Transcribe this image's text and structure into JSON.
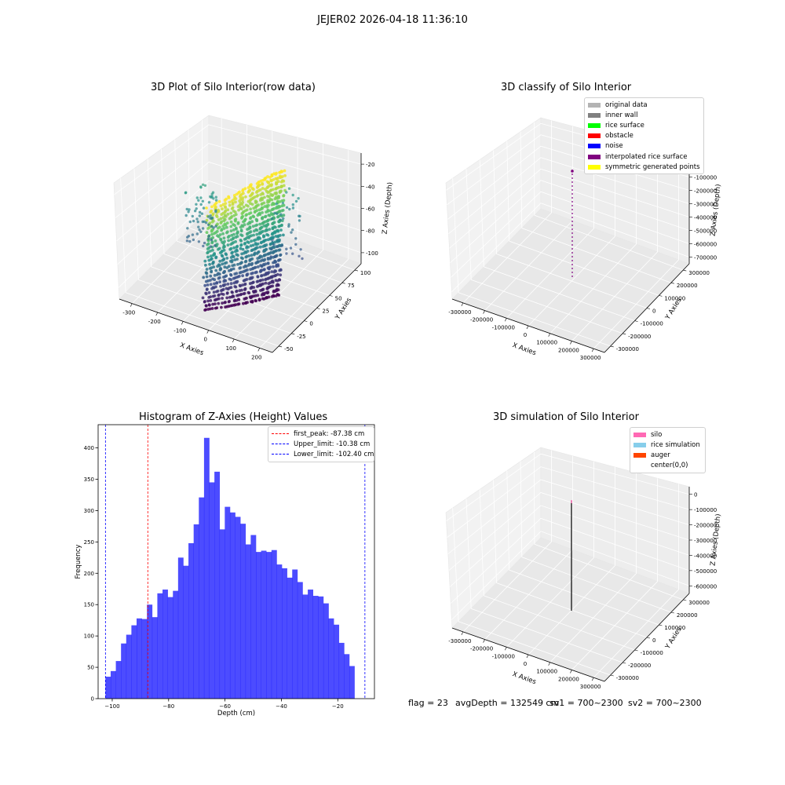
{
  "figure": {
    "suptitle": "JEJER02 2026-04-18 11:36:10",
    "footer": {
      "flag": "flag = 23",
      "avg": "avgDepth = 132549 cm",
      "sv1": "sv1 = 700~2300",
      "sv2": "sv2 = 700~2300"
    }
  },
  "chart_data": [
    {
      "type": "scatter",
      "projection": "3d",
      "title": "3D Plot of Silo Interior(row data)",
      "xlabel": "X Axies",
      "ylabel": "Y Axies",
      "zlabel": "Z Axies (Depth)",
      "x_ticks": [
        "-300",
        "-200",
        "-100",
        "0",
        "100",
        "200"
      ],
      "y_ticks": [
        "-50",
        "-25",
        "0",
        "25",
        "50",
        "75",
        "100"
      ],
      "z_ticks": [
        "-100",
        "-80",
        "-60",
        "-40",
        "-20"
      ],
      "xlim": [
        -340,
        230
      ],
      "ylim": [
        -60,
        115
      ],
      "zlim": [
        -105,
        -10
      ],
      "colormap": "viridis (by depth)",
      "description_points": "dense curtain of points, x approx -300..200, y approx -50..110, z approx -105..-10"
    },
    {
      "type": "scatter",
      "projection": "3d",
      "title": "3D classify of Silo Interior",
      "xlabel": "X Axies",
      "ylabel": "Y Axies",
      "zlabel": "Z Axies (Depth)",
      "x_ticks": [
        "-300000",
        "-200000",
        "-100000",
        "0",
        "100000",
        "200000",
        "300000"
      ],
      "y_ticks": [
        "-300000",
        "-200000",
        "-100000",
        "0",
        "100000",
        "200000",
        "300000"
      ],
      "z_ticks": [
        "-700000",
        "-600000",
        "-500000",
        "-400000",
        "-300000",
        "-200000",
        "-100000",
        "0"
      ],
      "legend": [
        {
          "label": "original data",
          "color": "#b3b3b3"
        },
        {
          "label": "inner wall",
          "color": "#808080"
        },
        {
          "label": "rice surface",
          "color": "#00ff00"
        },
        {
          "label": "obstacle",
          "color": "#ff0000"
        },
        {
          "label": "noise",
          "color": "#0000ff"
        },
        {
          "label": "interpolated rice surface",
          "color": "#800080"
        },
        {
          "label": "symmetric generated points",
          "color": "#ffff00"
        }
      ]
    },
    {
      "type": "bar",
      "subtype": "histogram",
      "title": "Histogram of Z-Axies (Height) Values",
      "xlabel": "Depth (cm)",
      "ylabel": "Frequency",
      "bar_color": "#0000ff",
      "bin_start": -102.4,
      "bin_width": 1.84,
      "values": [
        35,
        44,
        60,
        88,
        102,
        117,
        128,
        127,
        150,
        130,
        168,
        174,
        162,
        172,
        225,
        212,
        248,
        278,
        321,
        416,
        345,
        362,
        270,
        306,
        297,
        290,
        279,
        246,
        261,
        234,
        236,
        234,
        237,
        214,
        208,
        193,
        206,
        186,
        166,
        174,
        164,
        163,
        152,
        128,
        118,
        89,
        71,
        52
      ],
      "xlim": [
        -105,
        -7
      ],
      "ylim": [
        0,
        437
      ],
      "x_ticks": [
        -100,
        -80,
        -60,
        -40,
        -20
      ],
      "y_ticks": [
        0,
        50,
        100,
        150,
        200,
        250,
        300,
        350,
        400
      ],
      "lines": [
        {
          "label": "first_peak: -87.38 cm",
          "x": -87.38,
          "color": "#ff0000"
        },
        {
          "label": "Upper_limit: -10.38 cm",
          "x": -10.38,
          "color": "#0000ff"
        },
        {
          "label": "Lower_limit: -102.40 cm",
          "x": -102.4,
          "color": "#0000ff"
        }
      ]
    },
    {
      "type": "scatter",
      "projection": "3d",
      "title": "3D simulation of Silo Interior",
      "xlabel": "X Axies",
      "ylabel": "Y Axies",
      "zlabel": "Z Axies (Depth)",
      "x_ticks": [
        "-300000",
        "-200000",
        "-100000",
        "0",
        "100000",
        "200000",
        "300000"
      ],
      "y_ticks": [
        "-300000",
        "-200000",
        "-100000",
        "0",
        "100000",
        "200000",
        "300000"
      ],
      "z_ticks": [
        "-600000",
        "-500000",
        "-400000",
        "-300000",
        "-200000",
        "-100000",
        "0"
      ],
      "legend": [
        {
          "label": "silo",
          "color": "#ff69b4"
        },
        {
          "label": "rice simulation",
          "color": "#87ceeb"
        },
        {
          "label": "auger",
          "color": "#ff4500"
        },
        {
          "label": "center(0,0)",
          "color": "#ffffff"
        }
      ]
    }
  ]
}
